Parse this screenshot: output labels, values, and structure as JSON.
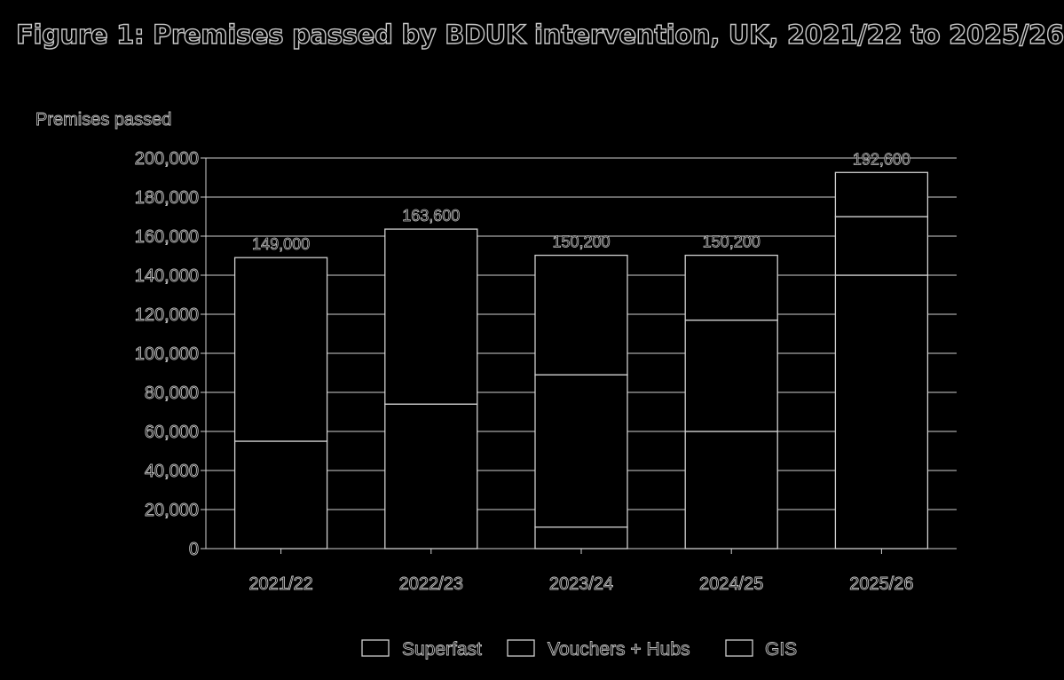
{
  "title": "Figure 1: Premises passed by BDUK intervention, UK, 2021/22 to 2025/26",
  "chart_data": {
    "type": "bar",
    "stacked": true,
    "ylabel": "Premises passed",
    "ylim": [
      0,
      200000
    ],
    "yticks": [
      "0",
      "20,000",
      "40,000",
      "60,000",
      "80,000",
      "100,000",
      "120,000",
      "140,000",
      "160,000",
      "180,000",
      "200,000"
    ],
    "categories": [
      "2021/22",
      "2022/23",
      "2023/24",
      "2024/25",
      "2025/26"
    ],
    "series": [
      {
        "name": "Superfast",
        "values": [
          55000,
          74000,
          11000,
          60000,
          140000
        ]
      },
      {
        "name": "Vouchers + Hubs",
        "values": [
          94000,
          89600,
          78000,
          57000,
          30000
        ]
      },
      {
        "name": "GIS",
        "values": [
          0,
          0,
          61200,
          33200,
          22600
        ]
      }
    ],
    "totals": [
      "149,000",
      "163,600",
      "150,200",
      "150,200",
      "192,600"
    ],
    "legend_position": "bottom",
    "colors": {
      "background": "#000000",
      "bar_fill": "#000000",
      "bar_edge": "#cfcfcf",
      "text_outline": "#bfbfbf"
    }
  }
}
